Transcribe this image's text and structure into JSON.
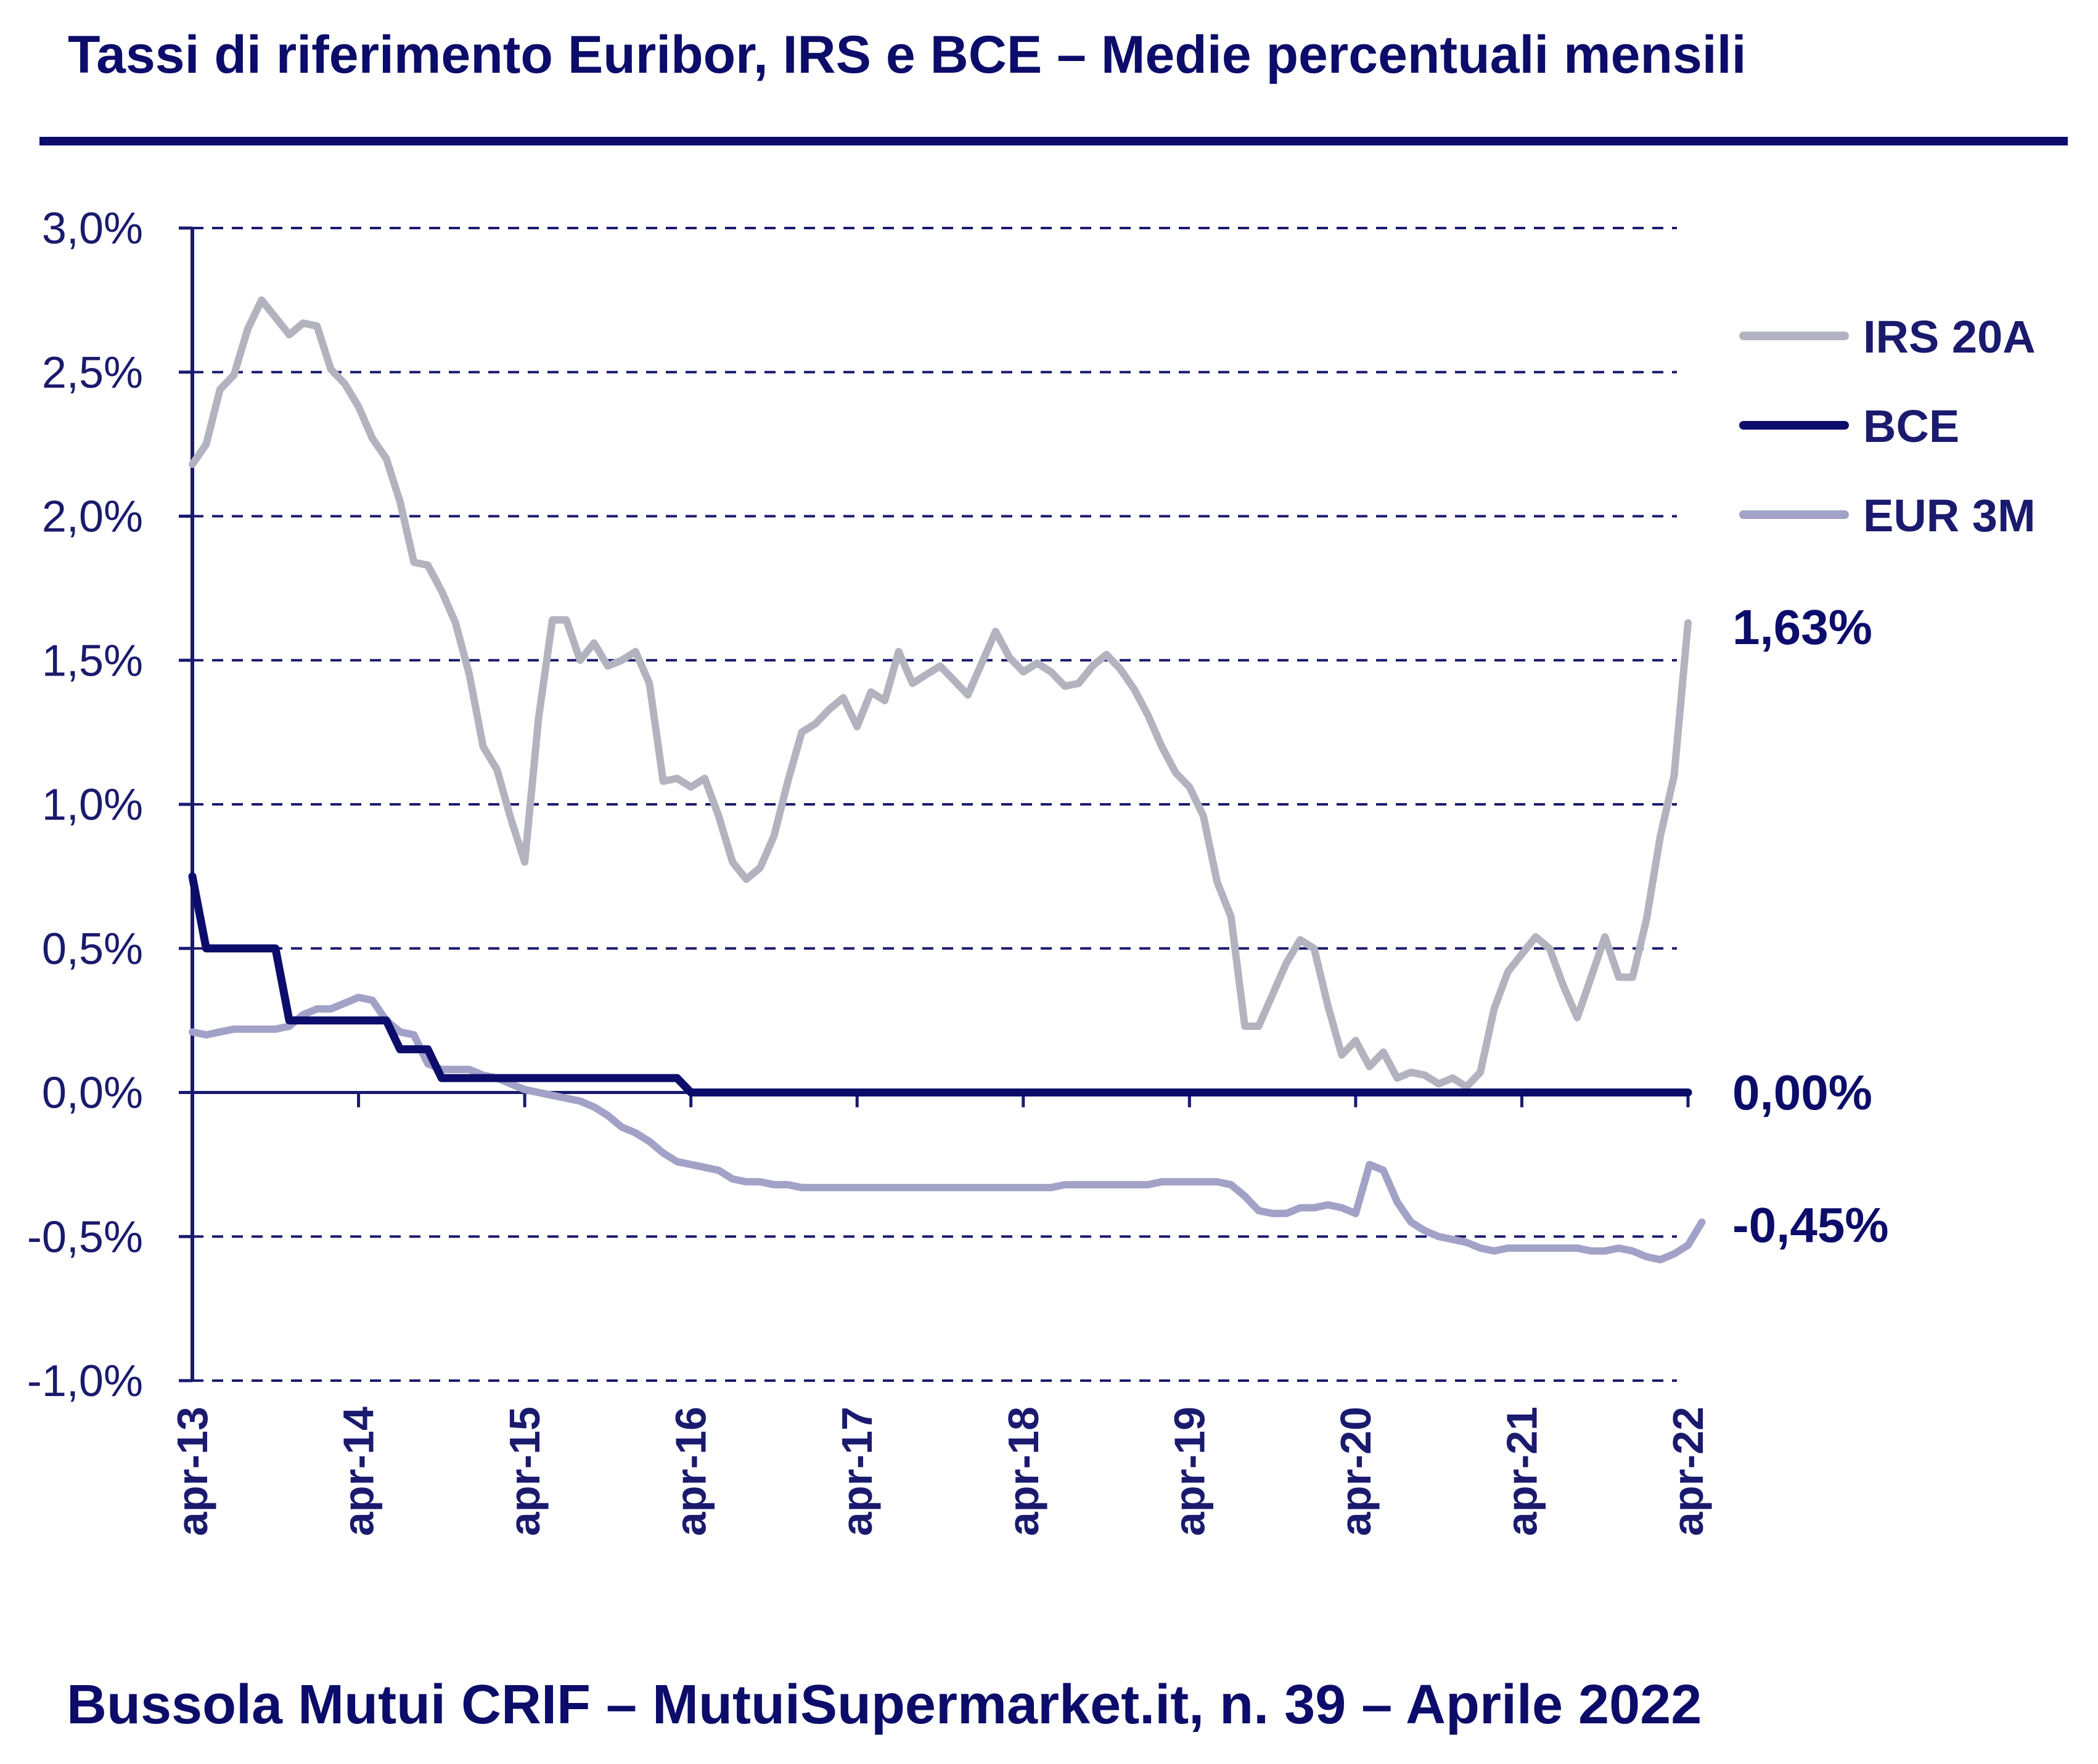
{
  "title": "Tassi di riferimento Euribor, IRS e BCE – Medie percentuali mensili",
  "footer": "Bussola Mutui CRIF – MutuiSupermarket.it, n. 39 – Aprile 2022",
  "colors": {
    "title": "#0c0c6a",
    "irs": "#b3b3bf",
    "bce": "#0c0c6a",
    "eur": "#a2a2c8"
  },
  "chart_data": {
    "type": "line",
    "x_start": "apr-13",
    "x_step": "month",
    "x_tick_labels": [
      "apr-13",
      "apr-14",
      "apr-15",
      "apr-16",
      "apr-17",
      "apr-18",
      "apr-19",
      "apr-20",
      "apr-21",
      "apr-22"
    ],
    "y_tick_labels": [
      "3,0%",
      "2,5%",
      "2,0%",
      "1,5%",
      "1,0%",
      "0,5%",
      "0,0%",
      "-0,5%",
      "-1,0%"
    ],
    "ylim": [
      -1.0,
      3.0
    ],
    "y_unit": "%",
    "grid": "horizontal dashed",
    "legend_position": "right",
    "series": [
      {
        "name": "IRS 20A",
        "color": "#b3b3bf",
        "end_label": "1,63%",
        "values": [
          2.18,
          2.25,
          2.44,
          2.49,
          2.65,
          2.75,
          2.69,
          2.63,
          2.67,
          2.66,
          2.51,
          2.46,
          2.38,
          2.27,
          2.2,
          2.05,
          1.84,
          1.83,
          1.74,
          1.63,
          1.45,
          1.2,
          1.12,
          0.95,
          0.8,
          1.3,
          1.64,
          1.64,
          1.5,
          1.56,
          1.48,
          1.5,
          1.53,
          1.42,
          1.08,
          1.09,
          1.06,
          1.09,
          0.96,
          0.8,
          0.74,
          0.78,
          0.89,
          1.08,
          1.25,
          1.28,
          1.33,
          1.37,
          1.27,
          1.39,
          1.36,
          1.53,
          1.42,
          1.45,
          1.48,
          1.43,
          1.38,
          1.49,
          1.6,
          1.51,
          1.46,
          1.49,
          1.46,
          1.41,
          1.42,
          1.48,
          1.52,
          1.47,
          1.4,
          1.31,
          1.2,
          1.11,
          1.06,
          0.96,
          0.73,
          0.61,
          0.23,
          0.23,
          0.34,
          0.45,
          0.53,
          0.5,
          0.3,
          0.13,
          0.18,
          0.09,
          0.14,
          0.05,
          0.07,
          0.06,
          0.03,
          0.05,
          0.02,
          0.07,
          0.29,
          0.42,
          0.48,
          0.54,
          0.5,
          0.37,
          0.26,
          0.4,
          0.54,
          0.4,
          0.4,
          0.6,
          0.89,
          1.1,
          1.63
        ]
      },
      {
        "name": "BCE",
        "color": "#0c0c6a",
        "end_label": "0,00%",
        "values": [
          0.75,
          0.5,
          0.5,
          0.5,
          0.5,
          0.5,
          0.5,
          0.25,
          0.25,
          0.25,
          0.25,
          0.25,
          0.25,
          0.25,
          0.25,
          0.15,
          0.15,
          0.15,
          0.05,
          0.05,
          0.05,
          0.05,
          0.05,
          0.05,
          0.05,
          0.05,
          0.05,
          0.05,
          0.05,
          0.05,
          0.05,
          0.05,
          0.05,
          0.05,
          0.05,
          0.05,
          0.0,
          0.0,
          0.0,
          0.0,
          0.0,
          0.0,
          0.0,
          0.0,
          0.0,
          0.0,
          0.0,
          0.0,
          0.0,
          0.0,
          0.0,
          0.0,
          0.0,
          0.0,
          0.0,
          0.0,
          0.0,
          0.0,
          0.0,
          0.0,
          0.0,
          0.0,
          0.0,
          0.0,
          0.0,
          0.0,
          0.0,
          0.0,
          0.0,
          0.0,
          0.0,
          0.0,
          0.0,
          0.0,
          0.0,
          0.0,
          0.0,
          0.0,
          0.0,
          0.0,
          0.0,
          0.0,
          0.0,
          0.0,
          0.0,
          0.0,
          0.0,
          0.0,
          0.0,
          0.0,
          0.0,
          0.0,
          0.0,
          0.0,
          0.0,
          0.0,
          0.0,
          0.0,
          0.0,
          0.0,
          0.0,
          0.0,
          0.0,
          0.0,
          0.0,
          0.0,
          0.0,
          0.0,
          0.0
        ]
      },
      {
        "name": "EUR 3M",
        "color": "#a2a2c8",
        "end_label": "-0,45%",
        "values": [
          0.21,
          0.2,
          0.21,
          0.22,
          0.22,
          0.22,
          0.22,
          0.23,
          0.27,
          0.29,
          0.29,
          0.31,
          0.33,
          0.32,
          0.25,
          0.21,
          0.2,
          0.1,
          0.08,
          0.08,
          0.08,
          0.06,
          0.05,
          0.03,
          0.01,
          0.0,
          -0.01,
          -0.02,
          -0.03,
          -0.05,
          -0.08,
          -0.12,
          -0.14,
          -0.17,
          -0.21,
          -0.24,
          -0.25,
          -0.26,
          -0.27,
          -0.3,
          -0.31,
          -0.31,
          -0.32,
          -0.32,
          -0.33,
          -0.33,
          -0.33,
          -0.33,
          -0.33,
          -0.33,
          -0.33,
          -0.33,
          -0.33,
          -0.33,
          -0.33,
          -0.33,
          -0.33,
          -0.33,
          -0.33,
          -0.33,
          -0.33,
          -0.33,
          -0.33,
          -0.32,
          -0.32,
          -0.32,
          -0.32,
          -0.32,
          -0.32,
          -0.32,
          -0.31,
          -0.31,
          -0.31,
          -0.31,
          -0.31,
          -0.32,
          -0.36,
          -0.41,
          -0.42,
          -0.42,
          -0.4,
          -0.4,
          -0.39,
          -0.4,
          -0.42,
          -0.25,
          -0.27,
          -0.38,
          -0.45,
          -0.48,
          -0.5,
          -0.51,
          -0.52,
          -0.54,
          -0.55,
          -0.54,
          -0.54,
          -0.54,
          -0.54,
          -0.54,
          -0.54,
          -0.55,
          -0.55,
          -0.54,
          -0.55,
          -0.57,
          -0.58,
          -0.56,
          -0.53,
          -0.45
        ]
      }
    ]
  }
}
